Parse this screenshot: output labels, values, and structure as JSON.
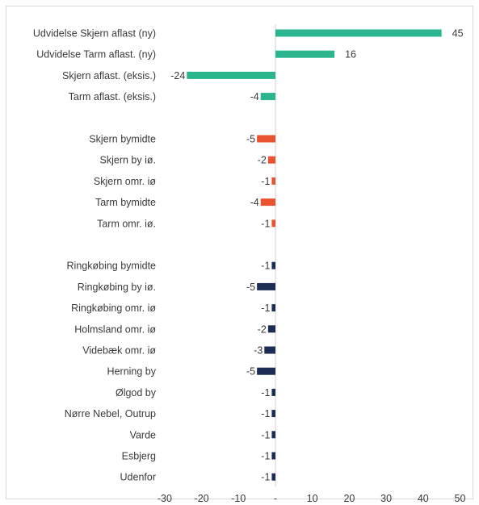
{
  "chart_data": {
    "type": "bar",
    "orientation": "horizontal",
    "xlim": [
      -30,
      50
    ],
    "xticks": [
      "-30",
      "-20",
      "-10",
      "-",
      "10",
      "20",
      "30",
      "40",
      "50"
    ],
    "xtick_values": [
      -30,
      -20,
      -10,
      0,
      10,
      20,
      30,
      40,
      50
    ],
    "grid": false,
    "groups": [
      {
        "color": "#2ab58e",
        "items": [
          {
            "label": "Udvidelse Skjern aflast (ny)",
            "value": 45,
            "value_label": "45"
          },
          {
            "label": "Udvidelse Tarm aflast. (ny)",
            "value": 16,
            "value_label": "16"
          },
          {
            "label": "Skjern aflast. (eksis.)",
            "value": -24,
            "value_label": "-24"
          },
          {
            "label": "Tarm aflast. (eksis.)",
            "value": -4,
            "value_label": "-4"
          }
        ]
      },
      {
        "color": "#ea5330",
        "items": [
          {
            "label": "Skjern bymidte",
            "value": -5,
            "value_label": "-5"
          },
          {
            "label": "Skjern by iø.",
            "value": -2,
            "value_label": "-2"
          },
          {
            "label": "Skjern omr. iø",
            "value": -1,
            "value_label": "-1"
          },
          {
            "label": "Tarm bymidte",
            "value": -4,
            "value_label": "-4"
          },
          {
            "label": "Tarm omr. iø.",
            "value": -1,
            "value_label": "-1"
          }
        ]
      },
      {
        "color": "#1c2c52",
        "items": [
          {
            "label": "Ringkøbing bymidte",
            "value": -1,
            "value_label": "-1"
          },
          {
            "label": "Ringkøbing by iø.",
            "value": -5,
            "value_label": "-5"
          },
          {
            "label": "Ringkøbing omr. iø",
            "value": -1,
            "value_label": "-1"
          },
          {
            "label": "Holmsland omr. iø",
            "value": -2,
            "value_label": "-2"
          },
          {
            "label": "Videbæk omr. iø",
            "value": -3,
            "value_label": "-3"
          },
          {
            "label": "Herning by",
            "value": -5,
            "value_label": "-5"
          },
          {
            "label": "Ølgod by",
            "value": -1,
            "value_label": "-1"
          },
          {
            "label": "Nørre Nebel, Outrup",
            "value": -1,
            "value_label": "-1"
          },
          {
            "label": "Varde",
            "value": -1,
            "value_label": "-1"
          },
          {
            "label": "Esbjerg",
            "value": -1,
            "value_label": "-1"
          },
          {
            "label": "Udenfor",
            "value": -1,
            "value_label": "-1"
          }
        ]
      }
    ]
  }
}
